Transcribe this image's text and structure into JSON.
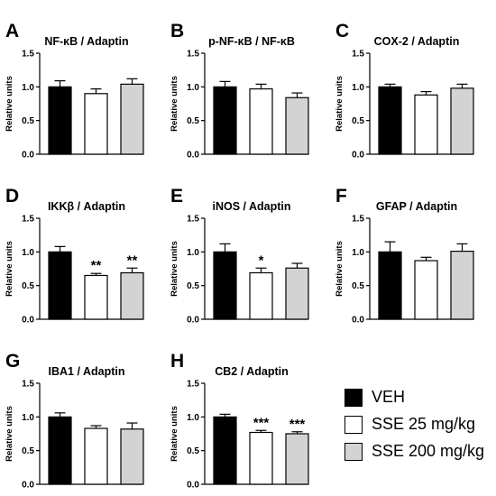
{
  "colors": {
    "veh": "#000000",
    "sse25": "#ffffff",
    "sse200": "#d3d3d3",
    "stroke": "#000000"
  },
  "legend": [
    {
      "label": "VEH",
      "color": "#000000"
    },
    {
      "label": "SSE 25 mg/kg",
      "color": "#ffffff"
    },
    {
      "label": "SSE 200 mg/kg",
      "color": "#d3d3d3"
    }
  ],
  "chart_data": [
    {
      "letter": "A",
      "type": "bar",
      "title": "NF-κB / Adaptin",
      "ylabel": "Relative units",
      "ylim": [
        0,
        1.5
      ],
      "yticks": [
        "0.0",
        "0.5",
        "1.0",
        "1.5"
      ],
      "series": [
        {
          "name": "VEH",
          "values": [
            1.0
          ]
        },
        {
          "name": "SSE 25 mg/kg",
          "values": [
            0.9
          ]
        },
        {
          "name": "SSE 200 mg/kg",
          "values": [
            1.04
          ]
        }
      ],
      "errors": [
        0.09,
        0.07,
        0.08
      ],
      "significance": [
        "",
        "",
        ""
      ]
    },
    {
      "letter": "B",
      "type": "bar",
      "title": "p-NF-κB / NF-κB",
      "ylabel": "Relative units",
      "ylim": [
        0,
        1.5
      ],
      "yticks": [
        "0.0",
        "0.5",
        "1.0",
        "1.5"
      ],
      "series": [
        {
          "name": "VEH",
          "values": [
            1.0
          ]
        },
        {
          "name": "SSE 25 mg/kg",
          "values": [
            0.97
          ]
        },
        {
          "name": "SSE 200 mg/kg",
          "values": [
            0.84
          ]
        }
      ],
      "errors": [
        0.08,
        0.07,
        0.07
      ],
      "significance": [
        "",
        "",
        ""
      ]
    },
    {
      "letter": "C",
      "type": "bar",
      "title": "COX-2 / Adaptin",
      "ylabel": "Relative units",
      "ylim": [
        0,
        1.5
      ],
      "yticks": [
        "0.0",
        "0.5",
        "1.0",
        "1.5"
      ],
      "series": [
        {
          "name": "VEH",
          "values": [
            1.0
          ]
        },
        {
          "name": "SSE 25 mg/kg",
          "values": [
            0.88
          ]
        },
        {
          "name": "SSE 200 mg/kg",
          "values": [
            0.98
          ]
        }
      ],
      "errors": [
        0.04,
        0.05,
        0.06
      ],
      "significance": [
        "",
        "",
        ""
      ]
    },
    {
      "letter": "D",
      "type": "bar",
      "title": "IKKβ / Adaptin",
      "ylabel": "Relative units",
      "ylim": [
        0,
        1.5
      ],
      "yticks": [
        "0.0",
        "0.5",
        "1.0",
        "1.5"
      ],
      "series": [
        {
          "name": "VEH",
          "values": [
            1.0
          ]
        },
        {
          "name": "SSE 25 mg/kg",
          "values": [
            0.65
          ]
        },
        {
          "name": "SSE 200 mg/kg",
          "values": [
            0.69
          ]
        }
      ],
      "errors": [
        0.08,
        0.03,
        0.07
      ],
      "significance": [
        "",
        "**",
        "**"
      ]
    },
    {
      "letter": "E",
      "type": "bar",
      "title": "iNOS / Adaptin",
      "ylabel": "Relative units",
      "ylim": [
        0,
        1.5
      ],
      "yticks": [
        "0.0",
        "0.5",
        "1.0",
        "1.5"
      ],
      "series": [
        {
          "name": "VEH",
          "values": [
            1.0
          ]
        },
        {
          "name": "SSE 25 mg/kg",
          "values": [
            0.69
          ]
        },
        {
          "name": "SSE 200 mg/kg",
          "values": [
            0.76
          ]
        }
      ],
      "errors": [
        0.12,
        0.07,
        0.07
      ],
      "significance": [
        "",
        "*",
        ""
      ]
    },
    {
      "letter": "F",
      "type": "bar",
      "title": "GFAP / Adaptin",
      "ylabel": "Relative units",
      "ylim": [
        0,
        1.5
      ],
      "yticks": [
        "0.0",
        "0.5",
        "1.0",
        "1.5"
      ],
      "series": [
        {
          "name": "VEH",
          "values": [
            1.0
          ]
        },
        {
          "name": "SSE 25 mg/kg",
          "values": [
            0.87
          ]
        },
        {
          "name": "SSE 200 mg/kg",
          "values": [
            1.01
          ]
        }
      ],
      "errors": [
        0.15,
        0.05,
        0.11
      ],
      "significance": [
        "",
        "",
        ""
      ]
    },
    {
      "letter": "G",
      "type": "bar",
      "title": "IBA1 / Adaptin",
      "ylabel": "Relative units",
      "ylim": [
        0,
        1.5
      ],
      "yticks": [
        "0.0",
        "0.5",
        "1.0",
        "1.5"
      ],
      "series": [
        {
          "name": "VEH",
          "values": [
            1.0
          ]
        },
        {
          "name": "SSE 25 mg/kg",
          "values": [
            0.83
          ]
        },
        {
          "name": "SSE 200 mg/kg",
          "values": [
            0.82
          ]
        }
      ],
      "errors": [
        0.06,
        0.04,
        0.09
      ],
      "significance": [
        "",
        "",
        ""
      ]
    },
    {
      "letter": "H",
      "type": "bar",
      "title": "CB2 / Adaptin",
      "ylabel": "Relative units",
      "ylim": [
        0,
        1.5
      ],
      "yticks": [
        "0.0",
        "0.5",
        "1.0",
        "1.5"
      ],
      "series": [
        {
          "name": "VEH",
          "values": [
            1.0
          ]
        },
        {
          "name": "SSE 25 mg/kg",
          "values": [
            0.77
          ]
        },
        {
          "name": "SSE 200 mg/kg",
          "values": [
            0.75
          ]
        }
      ],
      "errors": [
        0.04,
        0.03,
        0.03
      ],
      "significance": [
        "",
        "***",
        "***"
      ]
    }
  ]
}
